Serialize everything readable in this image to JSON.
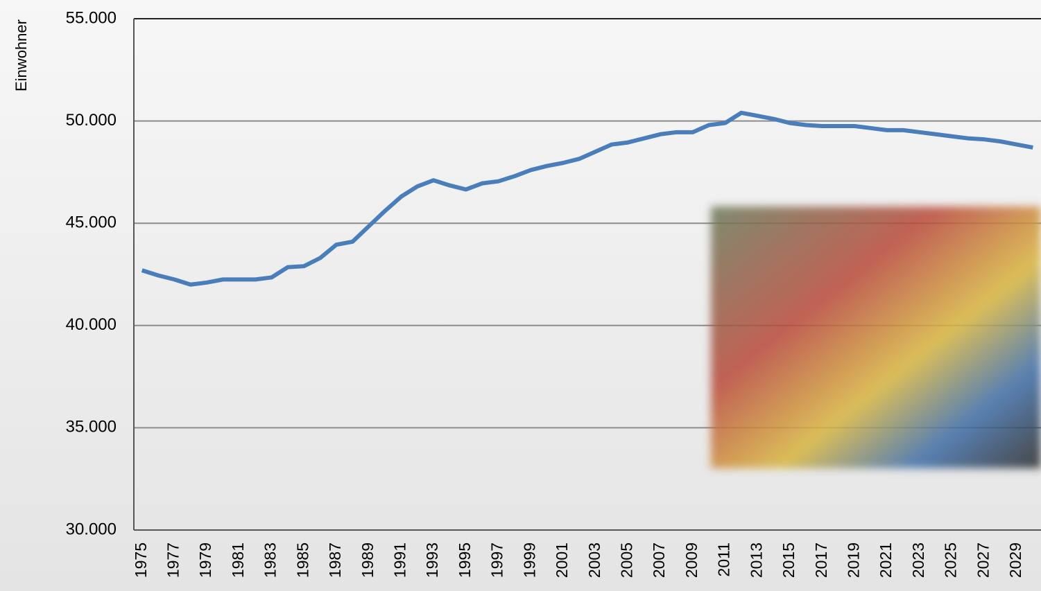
{
  "chart_data": {
    "type": "line",
    "y_axis_label": "Einwohner",
    "categories": [
      "1975",
      null,
      "1977",
      null,
      "1979",
      null,
      "1981",
      null,
      "1983",
      null,
      "1985",
      null,
      "1987",
      null,
      "1989",
      null,
      "1991",
      null,
      "1993",
      null,
      "1995",
      null,
      "1997",
      null,
      "1999",
      null,
      "2001",
      null,
      "2003",
      null,
      "2005",
      null,
      "2007",
      null,
      "2009",
      null,
      "2011",
      null,
      "2013",
      null,
      "2015",
      null,
      "2017",
      null,
      "2019",
      null,
      "2021",
      null,
      "2023",
      null,
      "2025",
      null,
      "2027",
      null,
      "2029",
      null
    ],
    "series": [
      {
        "name": "Einwohner",
        "color": "#4a7ebb",
        "values": [
          42700,
          42450,
          42250,
          42000,
          42100,
          42250,
          42250,
          42250,
          42350,
          42850,
          42900,
          43300,
          43950,
          44100,
          44850,
          45600,
          46300,
          46800,
          47100,
          46850,
          46650,
          46950,
          47050,
          47300,
          47600,
          47800,
          47950,
          48150,
          48500,
          48850,
          48950,
          49150,
          49350,
          49450,
          49450,
          49800,
          49900,
          50400,
          50250,
          50100,
          49900,
          49800,
          49750,
          49750,
          49750,
          49650,
          49550,
          49550,
          49450,
          49350,
          49250,
          49150,
          49100,
          49000,
          48850,
          48700
        ]
      }
    ],
    "ylim": [
      30000,
      55000
    ],
    "yticks": [
      {
        "value": 30000,
        "label": "30.000"
      },
      {
        "value": 35000,
        "label": "35.000"
      },
      {
        "value": 40000,
        "label": "40.000"
      },
      {
        "value": 45000,
        "label": "45.000"
      },
      {
        "value": 50000,
        "label": "50.000"
      },
      {
        "value": 55000,
        "label": "55.000"
      }
    ],
    "grid": true
  }
}
